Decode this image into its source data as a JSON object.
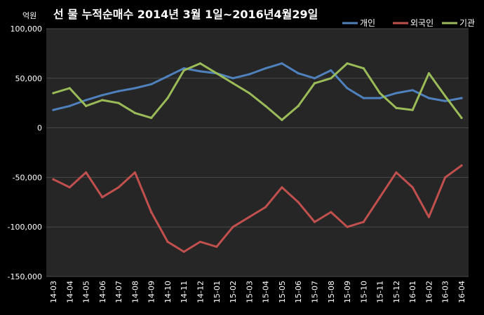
{
  "chart_data": {
    "type": "line",
    "title": "선 물 누적순매수 2014년 3월 1일~2016년4월29일",
    "unit_label": "억원",
    "ylim": [
      -150000,
      100000
    ],
    "yticks": [
      {
        "value": 100000,
        "label": "100,000"
      },
      {
        "value": 50000,
        "label": "50,000"
      },
      {
        "value": 0,
        "label": "0"
      },
      {
        "value": -50000,
        "label": "-50,000"
      },
      {
        "value": -100000,
        "label": "-100,000"
      },
      {
        "value": -150000,
        "label": "-150,000"
      }
    ],
    "x": [
      "14-03",
      "14-04",
      "14-05",
      "14-06",
      "14-07",
      "14-08",
      "14-09",
      "14-10",
      "14-11",
      "14-12",
      "15-01",
      "15-02",
      "15-03",
      "15-04",
      "15-05",
      "15-06",
      "15-07",
      "15-08",
      "15-09",
      "15-10",
      "15-11",
      "15-12",
      "16-01",
      "16-02",
      "16-03",
      "16-04"
    ],
    "grid": true,
    "legend_position": "top-right",
    "series": [
      {
        "name": "개인",
        "color": "#4f81bd",
        "values": [
          18000,
          22000,
          28000,
          33000,
          37000,
          40000,
          44000,
          52000,
          60000,
          57000,
          55000,
          50000,
          54000,
          60000,
          65000,
          55000,
          50000,
          58000,
          40000,
          30000,
          30000,
          35000,
          38000,
          30000,
          27000,
          30000
        ]
      },
      {
        "name": "외국인",
        "color": "#c0504d",
        "values": [
          -52000,
          -60000,
          -45000,
          -70000,
          -60000,
          -45000,
          -85000,
          -115000,
          -125000,
          -115000,
          -120000,
          -100000,
          -90000,
          -80000,
          -60000,
          -75000,
          -95000,
          -85000,
          -100000,
          -95000,
          -70000,
          -45000,
          -60000,
          -90000,
          -50000,
          -38000
        ]
      },
      {
        "name": "기관",
        "color": "#9bbb59",
        "values": [
          35000,
          40000,
          22000,
          28000,
          25000,
          15000,
          10000,
          30000,
          58000,
          65000,
          55000,
          45000,
          35000,
          22000,
          8000,
          22000,
          45000,
          50000,
          65000,
          60000,
          35000,
          20000,
          18000,
          55000,
          32000,
          10000
        ]
      }
    ]
  }
}
